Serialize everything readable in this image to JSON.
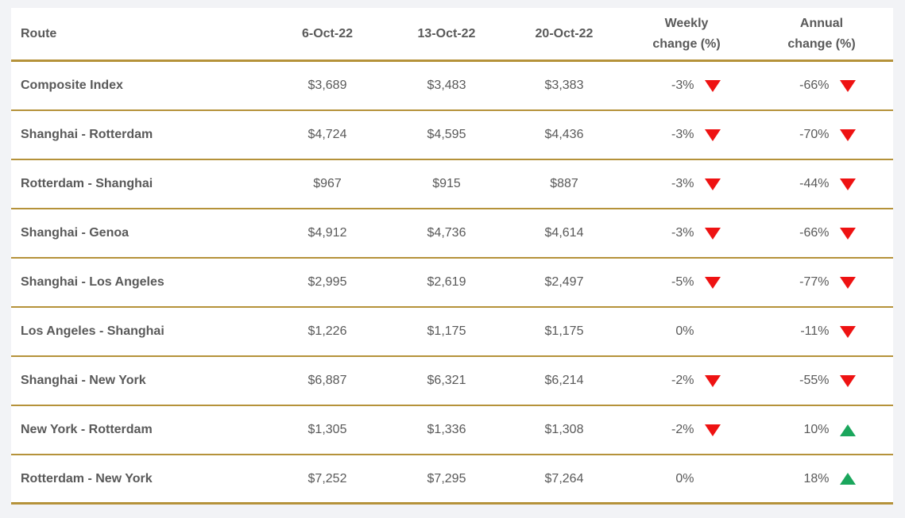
{
  "colors": {
    "background": "#f2f3f6",
    "table_background": "#ffffff",
    "gold_line": "#b5923a",
    "text": "#595959",
    "down_red": "#ee1212",
    "up_green": "#1aa65c"
  },
  "table": {
    "columns": [
      {
        "label": "Route"
      },
      {
        "label": "6-Oct-22"
      },
      {
        "label": "13-Oct-22"
      },
      {
        "label": "20-Oct-22"
      },
      {
        "line1": "Weekly",
        "line2": "change (%)"
      },
      {
        "line1": "Annual",
        "line2": "change (%)"
      }
    ],
    "rows": [
      {
        "route": "Composite Index",
        "oct6": "$3,689",
        "oct13": "$3,483",
        "oct20": "$3,383",
        "weekly": "-3%",
        "weekly_dir": "down",
        "annual": "-66%",
        "annual_dir": "down"
      },
      {
        "route": "Shanghai - Rotterdam",
        "oct6": "$4,724",
        "oct13": "$4,595",
        "oct20": "$4,436",
        "weekly": "-3%",
        "weekly_dir": "down",
        "annual": "-70%",
        "annual_dir": "down"
      },
      {
        "route": "Rotterdam - Shanghai",
        "oct6": "$967",
        "oct13": "$915",
        "oct20": "$887",
        "weekly": "-3%",
        "weekly_dir": "down",
        "annual": "-44%",
        "annual_dir": "down"
      },
      {
        "route": "Shanghai - Genoa",
        "oct6": "$4,912",
        "oct13": "$4,736",
        "oct20": "$4,614",
        "weekly": "-3%",
        "weekly_dir": "down",
        "annual": "-66%",
        "annual_dir": "down"
      },
      {
        "route": "Shanghai - Los Angeles",
        "oct6": "$2,995",
        "oct13": "$2,619",
        "oct20": "$2,497",
        "weekly": "-5%",
        "weekly_dir": "down",
        "annual": "-77%",
        "annual_dir": "down"
      },
      {
        "route": "Los Angeles - Shanghai",
        "oct6": "$1,226",
        "oct13": "$1,175",
        "oct20": "$1,175",
        "weekly": "0%",
        "weekly_dir": "none",
        "annual": "-11%",
        "annual_dir": "down"
      },
      {
        "route": "Shanghai - New York",
        "oct6": "$6,887",
        "oct13": "$6,321",
        "oct20": "$6,214",
        "weekly": "-2%",
        "weekly_dir": "down",
        "annual": "-55%",
        "annual_dir": "down"
      },
      {
        "route": "New York - Rotterdam",
        "oct6": "$1,305",
        "oct13": "$1,336",
        "oct20": "$1,308",
        "weekly": "-2%",
        "weekly_dir": "down",
        "annual": "10%",
        "annual_dir": "up"
      },
      {
        "route": "Rotterdam - New York",
        "oct6": "$7,252",
        "oct13": "$7,295",
        "oct20": "$7,264",
        "weekly": "0%",
        "weekly_dir": "none",
        "annual": "18%",
        "annual_dir": "up"
      }
    ]
  },
  "chart_data": {
    "type": "table",
    "title": "",
    "columns": [
      "Route",
      "6-Oct-22",
      "13-Oct-22",
      "20-Oct-22",
      "Weekly change (%)",
      "Annual change (%)"
    ],
    "rows": [
      [
        "Composite Index",
        "$3,689",
        "$3,483",
        "$3,383",
        "-3% down",
        "-66% down"
      ],
      [
        "Shanghai - Rotterdam",
        "$4,724",
        "$4,595",
        "$4,436",
        "-3% down",
        "-70% down"
      ],
      [
        "Rotterdam - Shanghai",
        "$967",
        "$915",
        "$887",
        "-3% down",
        "-44% down"
      ],
      [
        "Shanghai - Genoa",
        "$4,912",
        "$4,736",
        "$4,614",
        "-3% down",
        "-66% down"
      ],
      [
        "Shanghai - Los Angeles",
        "$2,995",
        "$2,619",
        "$2,497",
        "-5% down",
        "-77% down"
      ],
      [
        "Los Angeles - Shanghai",
        "$1,226",
        "$1,175",
        "$1,175",
        "0%",
        "-11% down"
      ],
      [
        "Shanghai - New York",
        "$6,887",
        "$6,321",
        "$6,214",
        "-2% down",
        "-55% down"
      ],
      [
        "New York - Rotterdam",
        "$1,305",
        "$1,336",
        "$1,308",
        "-2% down",
        "10% up"
      ],
      [
        "Rotterdam - New York",
        "$7,252",
        "$7,295",
        "$7,264",
        "0%",
        "18% up"
      ]
    ]
  }
}
